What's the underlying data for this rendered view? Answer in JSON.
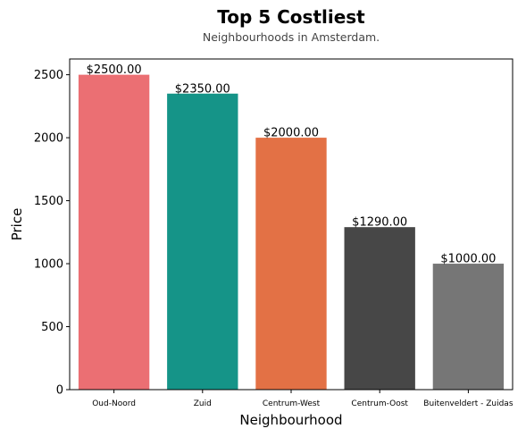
{
  "chart_data": {
    "type": "bar",
    "title": "Top 5 Costliest",
    "subtitle": "Neighbourhoods in Amsterdam.",
    "xlabel": "Neighbourhood",
    "ylabel": "Price",
    "categories": [
      "Oud-Noord",
      "Zuid",
      "Centrum-West",
      "Centrum-Oost",
      "Buitenveldert - Zuidas"
    ],
    "values": [
      2500,
      2350,
      2000,
      1290,
      1000
    ],
    "data_labels": [
      "$2500.00",
      "$2350.00",
      "$2000.00",
      "$1290.00",
      "$1000.00"
    ],
    "colors": [
      "#eb6f73",
      "#159488",
      "#e37145",
      "#474747",
      "#767676"
    ],
    "ylim": [
      0,
      2625
    ],
    "yticks": [
      0,
      500,
      1000,
      1500,
      2000,
      2500
    ],
    "grid": false,
    "legend": "none"
  }
}
